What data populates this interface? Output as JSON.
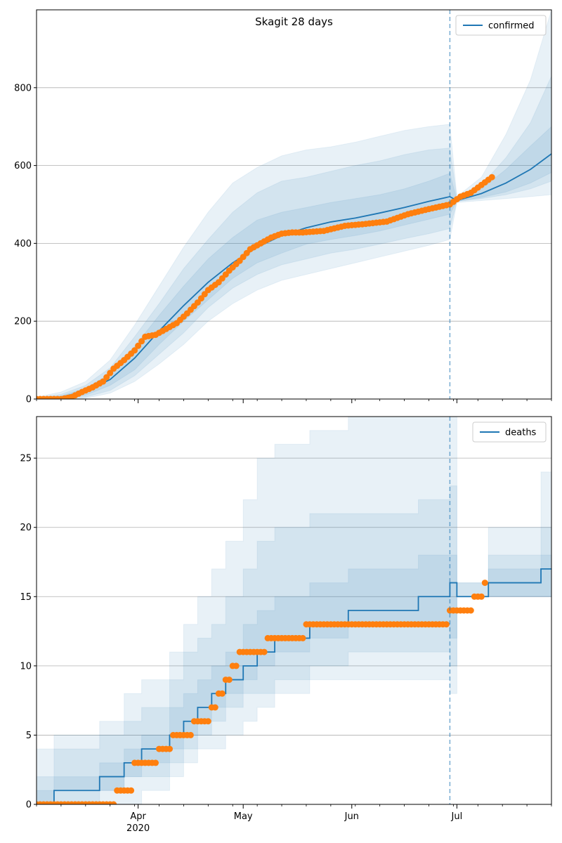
{
  "chart_data": [
    {
      "type": "line",
      "title": "Skagit 28 days",
      "legend": {
        "entries": [
          "confirmed"
        ],
        "placement": "top-right"
      },
      "grid": {
        "y": true,
        "x": false
      },
      "xlim": [
        "2020-03-03",
        "2020-07-28"
      ],
      "ylim": [
        0,
        1000
      ],
      "yticks": [
        0,
        200,
        400,
        600,
        800
      ],
      "cutoff_date": "2020-06-29",
      "series": [
        {
          "name": "confirmed",
          "kind": "model",
          "color": "#1f77b4",
          "x": [
            "2020-03-03",
            "2020-03-10",
            "2020-03-17",
            "2020-03-24",
            "2020-03-31",
            "2020-04-07",
            "2020-04-14",
            "2020-04-21",
            "2020-04-28",
            "2020-05-05",
            "2020-05-12",
            "2020-05-19",
            "2020-05-26",
            "2020-06-02",
            "2020-06-09",
            "2020-06-16",
            "2020-06-23",
            "2020-06-29",
            "2020-07-01",
            "2020-07-08",
            "2020-07-15",
            "2020-07-22",
            "2020-07-28"
          ],
          "values": [
            0,
            5,
            20,
            50,
            105,
            175,
            240,
            300,
            350,
            390,
            420,
            440,
            455,
            465,
            478,
            492,
            508,
            520,
            510,
            528,
            555,
            590,
            630
          ]
        },
        {
          "name": "observed",
          "kind": "points",
          "color": "#ff7f0e",
          "x": [
            "2020-03-03",
            "2020-03-10",
            "2020-03-13",
            "2020-03-16",
            "2020-03-19",
            "2020-03-22",
            "2020-03-25",
            "2020-03-28",
            "2020-03-31",
            "2020-04-03",
            "2020-04-06",
            "2020-04-09",
            "2020-04-12",
            "2020-04-15",
            "2020-04-18",
            "2020-04-21",
            "2020-04-24",
            "2020-04-27",
            "2020-04-30",
            "2020-05-03",
            "2020-05-06",
            "2020-05-09",
            "2020-05-12",
            "2020-05-15",
            "2020-05-18",
            "2020-05-24",
            "2020-05-30",
            "2020-06-05",
            "2020-06-11",
            "2020-06-17",
            "2020-06-23",
            "2020-06-29",
            "2020-07-02",
            "2020-07-05",
            "2020-07-08",
            "2020-07-11"
          ],
          "values": [
            0,
            0,
            5,
            18,
            30,
            45,
            78,
            100,
            125,
            160,
            165,
            180,
            195,
            220,
            248,
            280,
            300,
            330,
            355,
            385,
            400,
            415,
            425,
            428,
            428,
            432,
            445,
            450,
            456,
            475,
            488,
            500,
            520,
            530,
            550,
            570
          ]
        }
      ],
      "bands": [
        {
          "upper": [
            5,
            18,
            45,
            100,
            190,
            290,
            390,
            480,
            555,
            595,
            625,
            640,
            648,
            660,
            675,
            690,
            700,
            706,
            520,
            570,
            680,
            820,
            1000
          ],
          "lower": [
            0,
            0,
            2,
            15,
            45,
            90,
            140,
            200,
            245,
            280,
            305,
            320,
            335,
            350,
            365,
            380,
            395,
            410,
            505,
            510,
            515,
            520,
            525
          ]
        },
        {
          "upper": [
            3,
            12,
            35,
            80,
            160,
            245,
            335,
            410,
            480,
            530,
            560,
            570,
            585,
            600,
            612,
            628,
            640,
            645,
            515,
            550,
            620,
            710,
            830
          ],
          "lower": [
            0,
            1,
            5,
            22,
            60,
            115,
            170,
            235,
            285,
            320,
            345,
            360,
            375,
            385,
            398,
            412,
            425,
            438,
            508,
            515,
            525,
            540,
            560
          ]
        },
        {
          "upper": [
            1,
            8,
            28,
            65,
            135,
            215,
            290,
            360,
            415,
            460,
            480,
            492,
            505,
            515,
            525,
            540,
            560,
            580,
            512,
            540,
            590,
            650,
            700
          ],
          "lower": [
            0,
            2,
            10,
            35,
            75,
            140,
            200,
            255,
            310,
            350,
            375,
            398,
            410,
            420,
            432,
            447,
            462,
            475,
            508,
            518,
            532,
            555,
            582
          ]
        }
      ]
    },
    {
      "type": "line",
      "legend": {
        "entries": [
          "deaths"
        ],
        "placement": "top-right"
      },
      "grid": {
        "y": true,
        "x": false
      },
      "xlim": [
        "2020-03-03",
        "2020-07-28"
      ],
      "ylim": [
        0,
        28
      ],
      "yticks": [
        0,
        5,
        10,
        15,
        20,
        25
      ],
      "cutoff_date": "2020-06-29",
      "xticks": [
        {
          "date": "2020-04-01",
          "label": "Apr",
          "sublabel": "2020"
        },
        {
          "date": "2020-05-01",
          "label": "May",
          "sublabel": ""
        },
        {
          "date": "2020-06-01",
          "label": "Jun",
          "sublabel": ""
        },
        {
          "date": "2020-07-01",
          "label": "Jul",
          "sublabel": ""
        }
      ],
      "series": [
        {
          "name": "deaths",
          "kind": "model-step",
          "color": "#1f77b4",
          "x": [
            "2020-03-03",
            "2020-03-08",
            "2020-03-21",
            "2020-03-28",
            "2020-04-02",
            "2020-04-10",
            "2020-04-14",
            "2020-04-18",
            "2020-04-22",
            "2020-04-26",
            "2020-05-01",
            "2020-05-05",
            "2020-05-10",
            "2020-05-20",
            "2020-05-31",
            "2020-06-20",
            "2020-06-29",
            "2020-07-01",
            "2020-07-10",
            "2020-07-25",
            "2020-07-28"
          ],
          "values": [
            0,
            1,
            2,
            3,
            4,
            5,
            6,
            7,
            8,
            9,
            10,
            11,
            12,
            13,
            14,
            15,
            16,
            15,
            16,
            17,
            17
          ]
        },
        {
          "name": "observed",
          "kind": "points",
          "color": "#ff7f0e",
          "x": [
            "2020-03-03",
            "2020-03-21",
            "2020-03-26",
            "2020-03-31",
            "2020-04-07",
            "2020-04-11",
            "2020-04-17",
            "2020-04-20",
            "2020-04-22",
            "2020-04-24",
            "2020-04-26",
            "2020-04-28",
            "2020-04-30",
            "2020-05-08",
            "2020-05-19",
            "2020-06-29",
            "2020-07-06",
            "2020-07-09"
          ],
          "values": [
            0,
            0,
            1,
            3,
            4,
            5,
            6,
            6,
            7,
            8,
            9,
            10,
            11,
            12,
            13,
            14,
            15,
            16
          ]
        }
      ],
      "bands": [
        {
          "upper": [
            4,
            5,
            6,
            8,
            9,
            11,
            13,
            15,
            17,
            19,
            22,
            25,
            26,
            27,
            28,
            28,
            28,
            16,
            20,
            24,
            24
          ],
          "lower": [
            0,
            0,
            0,
            0,
            1,
            2,
            3,
            4,
            4,
            5,
            6,
            7,
            8,
            9,
            9,
            9,
            8,
            15,
            15,
            15,
            15
          ]
        },
        {
          "upper": [
            2,
            4,
            5,
            6,
            7,
            9,
            11,
            12,
            13,
            15,
            17,
            19,
            20,
            21,
            21,
            22,
            23,
            16,
            18,
            20,
            20
          ],
          "lower": [
            0,
            0,
            1,
            2,
            2,
            3,
            4,
            5,
            6,
            7,
            8,
            8,
            9,
            10,
            11,
            11,
            10,
            15,
            15,
            15,
            15
          ]
        },
        {
          "upper": [
            1,
            2,
            3,
            4,
            5,
            7,
            8,
            9,
            10,
            11,
            13,
            14,
            15,
            16,
            17,
            18,
            18,
            15,
            17,
            18,
            18
          ],
          "lower": [
            0,
            1,
            1,
            2,
            3,
            4,
            5,
            6,
            7,
            8,
            9,
            10,
            11,
            12,
            13,
            13,
            12,
            15,
            15,
            15,
            16
          ]
        }
      ]
    }
  ],
  "colors": {
    "model": "#1f77b4",
    "observed": "#ff7f0e",
    "band": "#1f77b4",
    "grid": "#b0b0b0"
  }
}
